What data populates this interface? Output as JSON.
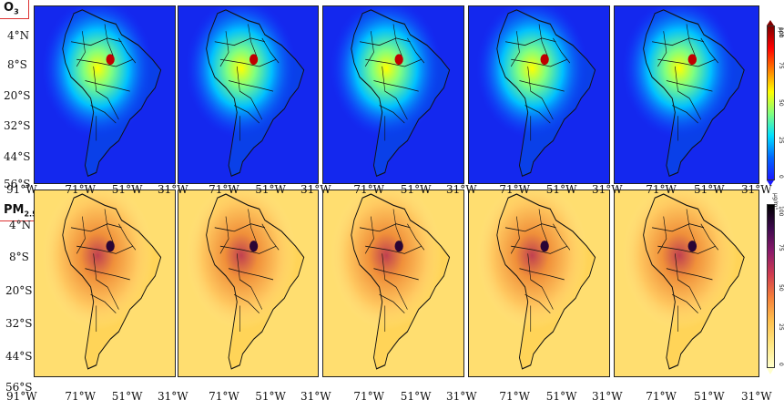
{
  "rows": [
    {
      "label": "O",
      "label_sub": "3",
      "unit": "ppb",
      "cbar_ticks": [
        "0",
        "25",
        "50",
        "75",
        "100"
      ],
      "cbar_colors": [
        "#1a1aff",
        "#0066ff",
        "#00e0ff",
        "#80ff80",
        "#ffff00",
        "#ff8000",
        "#ff0000",
        "#800000"
      ]
    },
    {
      "label": "PM",
      "label_sub": "2.5",
      "unit": "μg/m³",
      "cbar_ticks": [
        "0",
        "25",
        "50",
        "75",
        "100"
      ],
      "cbar_colors": [
        "#ffffcc",
        "#ffe680",
        "#ffc04d",
        "#f5803a",
        "#d03c50",
        "#8a1a6b",
        "#3d0a4d",
        "#000000"
      ]
    }
  ],
  "lat_labels": [
    "4°N",
    "8°S",
    "20°S",
    "32°S",
    "44°S",
    "56°S"
  ],
  "lon_labels": [
    "91°W",
    "71°W",
    "51°W",
    "31°W"
  ],
  "panels_per_row": 5
}
